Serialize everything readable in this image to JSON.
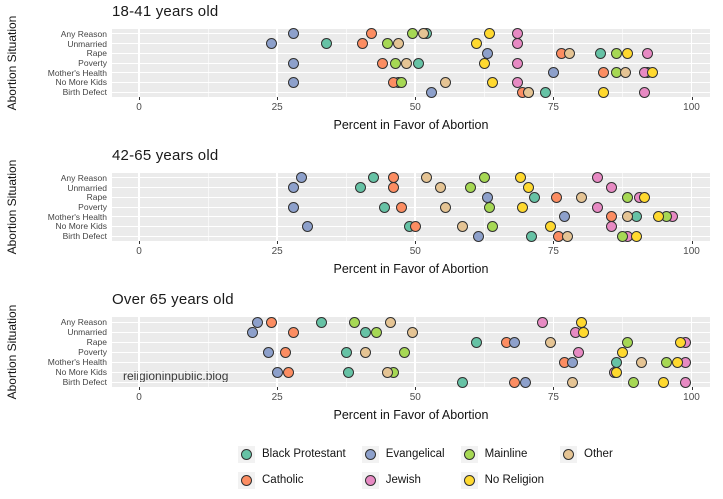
{
  "style": {
    "panel_background": "#EBEBEB",
    "gridline_color": "#FFFFFF",
    "point_stroke": "#303030",
    "text_color": "#141414",
    "tick_text_color": "#4D4D4D"
  },
  "watermark": "religioninpublic.blog",
  "axis": {
    "tick_labels": [
      "0",
      "25",
      "50",
      "75",
      "100"
    ],
    "tick_values": [
      0,
      25,
      50,
      75,
      100
    ],
    "minor_tick_values": [
      12.5,
      37.5,
      62.5,
      87.5
    ]
  },
  "legend": {
    "items": [
      {
        "label": "Black Protestant",
        "color": "#66C2A5"
      },
      {
        "label": "Catholic",
        "color": "#FC8D62"
      },
      {
        "label": "Evangelical",
        "color": "#8DA0CB"
      },
      {
        "label": "Jewish",
        "color": "#E78AC3"
      },
      {
        "label": "Mainline",
        "color": "#A6D854"
      },
      {
        "label": "No Religion",
        "color": "#FFD92F"
      },
      {
        "label": "Other",
        "color": "#E5C494"
      }
    ]
  },
  "chart_data": [
    {
      "type": "scatter",
      "title": "18-41 years old",
      "xlabel": "Percent in Favor of Abortion",
      "ylabel": "Abortion Situation",
      "xlim": [
        0,
        100
      ],
      "grid": true,
      "legend_position": "bottom",
      "categories": [
        "Any Reason",
        "Unmarried",
        "Rape",
        "Poverty",
        "Mother's Health",
        "No More Kids",
        "Birth Defect"
      ],
      "series": [
        {
          "name": "Black Protestant",
          "color": "#66C2A5",
          "values": [
            52,
            34,
            83.5,
            50.5,
            92,
            47,
            73.5
          ]
        },
        {
          "name": "Catholic",
          "color": "#FC8D62",
          "values": [
            42,
            40.5,
            76.5,
            44,
            84,
            46,
            69.5
          ]
        },
        {
          "name": "Evangelical",
          "color": "#8DA0CB",
          "values": [
            28,
            24,
            63,
            28,
            75,
            28,
            53
          ]
        },
        {
          "name": "Jewish",
          "color": "#E78AC3",
          "values": [
            68.5,
            68.5,
            92,
            68.5,
            91.5,
            68.5,
            91.5
          ]
        },
        {
          "name": "Mainline",
          "color": "#A6D854",
          "values": [
            49.5,
            45,
            86.5,
            46.5,
            86.5,
            47.5,
            70.5
          ]
        },
        {
          "name": "No Religion",
          "color": "#FFD92F",
          "values": [
            63.5,
            61,
            88.5,
            62.5,
            93,
            64,
            84
          ]
        },
        {
          "name": "Other",
          "color": "#E5C494",
          "values": [
            51.5,
            47,
            78,
            48.5,
            88,
            55.5,
            70.5
          ]
        }
      ]
    },
    {
      "type": "scatter",
      "title": "42-65 years old",
      "xlabel": "Percent in Favor of Abortion",
      "ylabel": "Abortion Situation",
      "xlim": [
        0,
        100
      ],
      "grid": true,
      "legend_position": "bottom",
      "categories": [
        "Any Reason",
        "Unmarried",
        "Rape",
        "Poverty",
        "Mother's Health",
        "No More Kids",
        "Birth Defect"
      ],
      "series": [
        {
          "name": "Black Protestant",
          "color": "#66C2A5",
          "values": [
            42.5,
            40,
            71.5,
            44.5,
            90,
            49,
            71
          ]
        },
        {
          "name": "Catholic",
          "color": "#FC8D62",
          "values": [
            46,
            46,
            75.5,
            47.5,
            85.5,
            50,
            76
          ]
        },
        {
          "name": "Evangelical",
          "color": "#8DA0CB",
          "values": [
            29.5,
            28,
            63,
            28,
            77,
            30.5,
            61.5
          ]
        },
        {
          "name": "Jewish",
          "color": "#E78AC3",
          "values": [
            83,
            85.5,
            90.5,
            83,
            96.5,
            85.5,
            88.5
          ]
        },
        {
          "name": "Mainline",
          "color": "#A6D854",
          "values": [
            62.5,
            60,
            88.5,
            63.5,
            95.5,
            64,
            87.5
          ]
        },
        {
          "name": "No Religion",
          "color": "#FFD92F",
          "values": [
            69,
            70.5,
            91.5,
            69.5,
            94,
            74.5,
            90
          ]
        },
        {
          "name": "Other",
          "color": "#E5C494",
          "values": [
            52,
            54.5,
            80,
            55.5,
            88.5,
            58.5,
            77.5
          ]
        }
      ]
    },
    {
      "type": "scatter",
      "title": "Over 65 years old",
      "xlabel": "Percent in Favor of Abortion",
      "ylabel": "Abortion Situation",
      "xlim": [
        0,
        100
      ],
      "grid": true,
      "legend_position": "bottom",
      "categories": [
        "Any Reason",
        "Unmarried",
        "Rape",
        "Poverty",
        "Mother's Health",
        "No More Kids",
        "Birth Defect"
      ],
      "series": [
        {
          "name": "Black Protestant",
          "color": "#66C2A5",
          "values": [
            33,
            41,
            61,
            37.5,
            86.5,
            38,
            58.5
          ]
        },
        {
          "name": "Catholic",
          "color": "#FC8D62",
          "values": [
            24,
            28,
            66.5,
            26.5,
            77,
            27,
            68
          ]
        },
        {
          "name": "Evangelical",
          "color": "#8DA0CB",
          "values": [
            21.5,
            20.5,
            68,
            23.5,
            78.5,
            25,
            70
          ]
        },
        {
          "name": "Jewish",
          "color": "#E78AC3",
          "values": [
            73,
            79,
            99,
            79.5,
            99,
            86,
            99
          ]
        },
        {
          "name": "Mainline",
          "color": "#A6D854",
          "values": [
            39,
            43,
            88.5,
            48,
            95.5,
            46,
            89.5
          ]
        },
        {
          "name": "No Religion",
          "color": "#FFD92F",
          "values": [
            80,
            80.5,
            98,
            87.5,
            97.5,
            86.5,
            95
          ]
        },
        {
          "name": "Other",
          "color": "#E5C494",
          "values": [
            45.5,
            49.5,
            74.5,
            41,
            91,
            45,
            78.5
          ]
        }
      ]
    }
  ]
}
